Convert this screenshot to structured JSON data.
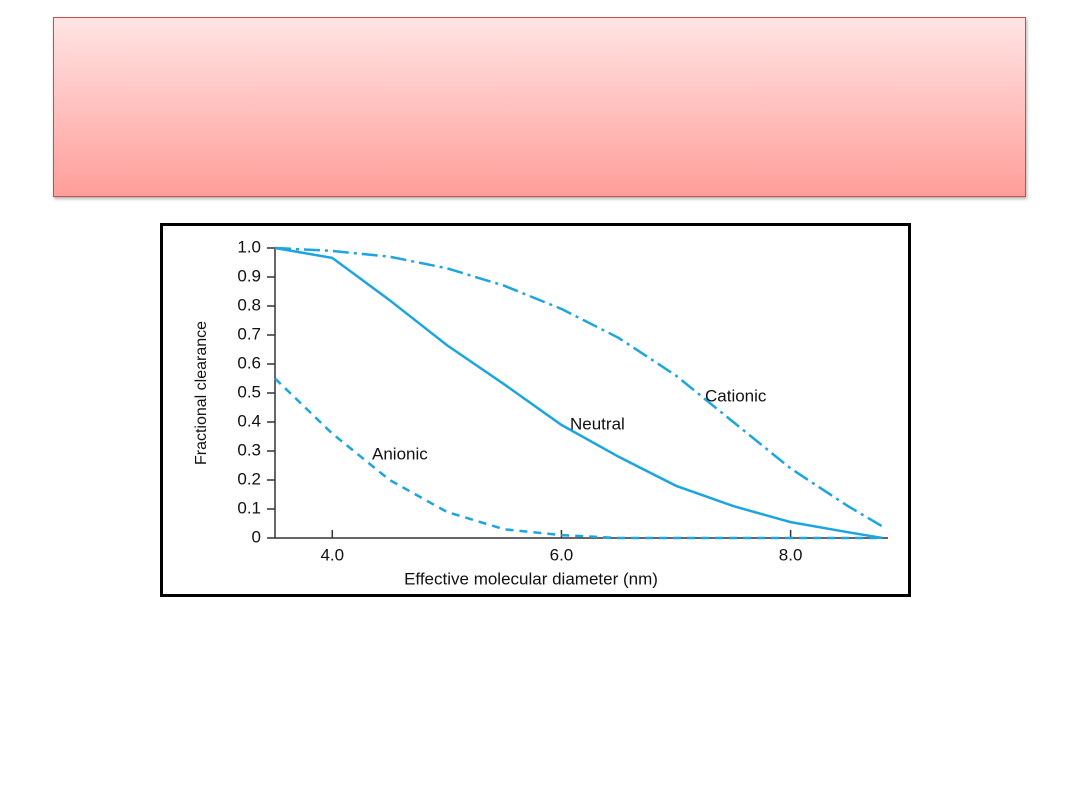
{
  "chart_data": {
    "type": "line",
    "x_label": "Effective molecular diameter (nm)",
    "y_label": "Fractional clearance",
    "x": [
      3.5,
      4.0,
      4.5,
      5.0,
      5.5,
      6.0,
      6.5,
      7.0,
      7.5,
      8.0,
      8.5,
      8.8
    ],
    "series": [
      {
        "name": "Cationic",
        "color": "#1ca5df",
        "dash": "dashdot",
        "values": [
          1.0,
          0.99,
          0.97,
          0.93,
          0.87,
          0.79,
          0.69,
          0.56,
          0.4,
          0.24,
          0.11,
          0.04
        ]
      },
      {
        "name": "Neutral",
        "color": "#1ca5df",
        "dash": "solid",
        "values": [
          1.0,
          0.966,
          0.82,
          0.665,
          0.53,
          0.39,
          0.28,
          0.18,
          0.11,
          0.055,
          0.02,
          0
        ]
      },
      {
        "name": "Anionic",
        "color": "#1ca5df",
        "dash": "dashed",
        "values": [
          0.55,
          0.36,
          0.2,
          0.09,
          0.03,
          0.01,
          0,
          0,
          0,
          0,
          0,
          0
        ]
      }
    ],
    "xlim": [
      3.5,
      8.85
    ],
    "ylim": [
      0,
      1
    ],
    "xticks": [
      {
        "value": 4,
        "label": "4.0"
      },
      {
        "value": 6,
        "label": "6.0"
      },
      {
        "value": 8,
        "label": "8.0"
      }
    ],
    "yticks": [
      0,
      0.1,
      0.2,
      0.3,
      0.4,
      0.5,
      0.6,
      0.7,
      0.8,
      0.9,
      {
        "value": 1,
        "label": "1.0"
      }
    ],
    "grid": false
  }
}
